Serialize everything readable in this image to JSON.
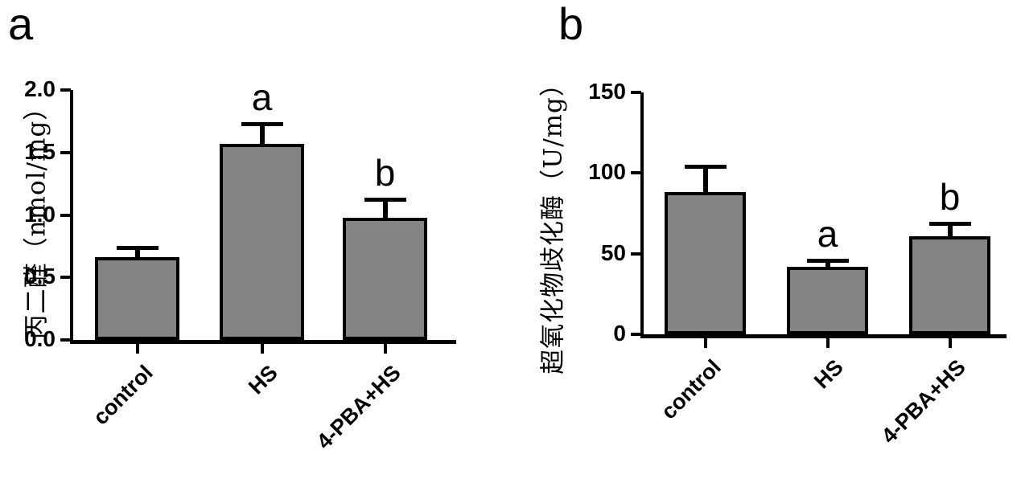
{
  "background": "#ffffff",
  "chart_data": [
    {
      "type": "bar",
      "panel_label": "a",
      "title": "",
      "xlabel": "",
      "ylabel": "丙二醛（nmol/mg）",
      "categories": [
        "control",
        "HS",
        "4-PBA+HS"
      ],
      "values": [
        0.66,
        1.57,
        0.98
      ],
      "errors_plus": [
        0.09,
        0.17,
        0.16
      ],
      "sig_letters": [
        "",
        "a",
        "b"
      ],
      "ylim": [
        0,
        2.0
      ],
      "ytick_labels": [
        "0.0",
        "0.5",
        "1.0",
        "1.5",
        "2.0"
      ],
      "grid": false,
      "legend": null,
      "bar_color": "#848484",
      "bar_border_color": "#000000"
    },
    {
      "type": "bar",
      "panel_label": "b",
      "title": "",
      "xlabel": "",
      "ylabel": "超氧化物歧化酶（U/mg）",
      "categories": [
        "control",
        "HS",
        "4-PBA+HS"
      ],
      "values": [
        88,
        42,
        61
      ],
      "errors_plus": [
        17,
        5,
        9
      ],
      "sig_letters": [
        "",
        "a",
        "b"
      ],
      "ylim": [
        0,
        150
      ],
      "ytick_labels": [
        "0",
        "50",
        "100",
        "150"
      ],
      "grid": false,
      "legend": null,
      "bar_color": "#848484",
      "bar_border_color": "#000000"
    }
  ]
}
